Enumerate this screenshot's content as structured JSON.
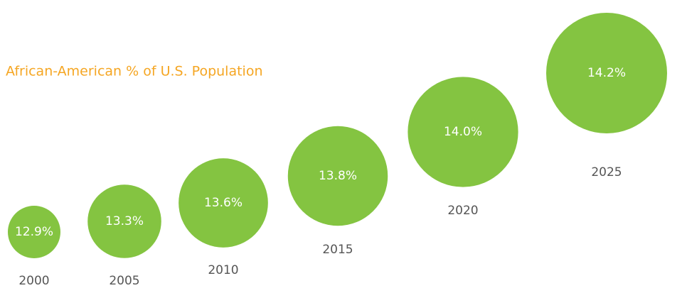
{
  "chart_data": {
    "type": "bubble",
    "title": "African-American % of U.S. Population",
    "categories": [
      "2000",
      "2005",
      "2010",
      "2015",
      "2020",
      "2025"
    ],
    "values": [
      12.9,
      13.3,
      13.6,
      13.8,
      14.0,
      14.2
    ],
    "value_labels": [
      "12.9%",
      "13.3%",
      "13.6%",
      "13.8%",
      "14.0%",
      "14.2%"
    ],
    "color": "#84c441"
  }
}
